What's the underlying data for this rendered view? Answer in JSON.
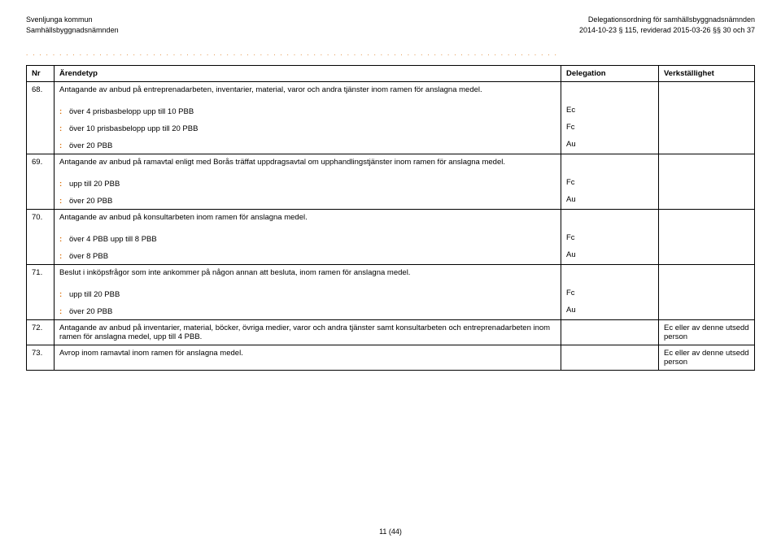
{
  "header": {
    "left1": "Svenljunga kommun",
    "left2": "Samhällsbyggnadsnämnden",
    "right1": "Delegationsordning för samhällsbyggnadsnämnden",
    "right2": "2014-10-23 § 115, reviderad 2015-03-26 §§ 30 och 37"
  },
  "dotsChar": ".",
  "dotsCount": 80,
  "dotsColor": "#d96b00",
  "colonColor": "#d96b00",
  "cols": {
    "nr": "Nr",
    "ar": "Ärendetyp",
    "de": "Delegation",
    "ve": "Verkställighet"
  },
  "rows": [
    {
      "nr": "68.",
      "desc": "Antagande av anbud på entreprenadarbeten, inventarier, material, varor och andra tjänster inom ramen för anslagna medel.",
      "subs": [
        {
          "text": "över 4 prisbasbelopp upp till 10 PBB",
          "del": "Ec"
        },
        {
          "text": "över 10 prisbasbelopp upp till 20 PBB",
          "del": "Fc"
        },
        {
          "text": "över 20 PBB",
          "del": "Au"
        }
      ]
    },
    {
      "nr": "69.",
      "desc": "Antagande av anbud på ramavtal enligt med Borås träffat uppdragsavtal om upphandlingstjänster inom ramen för anslagna medel.",
      "subs": [
        {
          "text": "upp till 20 PBB",
          "del": "Fc"
        },
        {
          "text": "över 20 PBB",
          "del": "Au"
        }
      ]
    },
    {
      "nr": "70.",
      "desc": "Antagande av anbud på konsultarbeten inom ramen för anslagna medel.",
      "subs": [
        {
          "text": "över 4 PBB upp till 8 PBB",
          "del": "Fc"
        },
        {
          "text": "över 8 PBB",
          "del": "Au"
        }
      ]
    },
    {
      "nr": "71.",
      "desc": "Beslut i inköpsfrågor som inte ankommer på någon annan att besluta, inom ramen för anslagna medel.",
      "subs": [
        {
          "text": "upp till 20 PBB",
          "del": "Fc"
        },
        {
          "text": "över 20 PBB",
          "del": "Au"
        }
      ]
    },
    {
      "nr": "72.",
      "desc": "Antagande av anbud på inventarier, material, böcker, övriga medier, varor och andra tjänster samt konsultarbeten och entreprenadarbeten inom ramen för anslagna medel, upp till 4 PBB.",
      "ver": "Ec eller av denne utsedd person"
    },
    {
      "nr": "73.",
      "desc": "Avrop inom ramavtal inom ramen för anslagna medel.",
      "ver": "Ec eller av denne utsedd person"
    }
  ],
  "footer": "11 (44)"
}
